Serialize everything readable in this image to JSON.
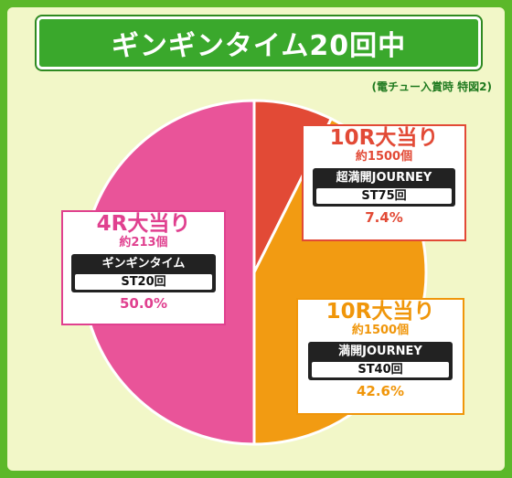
{
  "title": "ギンギンタイム20回中",
  "note": "(電チュー入賞時 特図2)",
  "chart_data": {
    "type": "pie",
    "title": "ギンギンタイム20回中",
    "slices": [
      {
        "label": "10R大当り",
        "sub": "約1500個",
        "mode": "超満開JOURNEY",
        "st": "ST75回",
        "value": 7.4,
        "pct_label": "7.4%",
        "color": "#e24a36"
      },
      {
        "label": "10R大当り",
        "sub": "約1500個",
        "mode": "満開JOURNEY",
        "st": "ST40回",
        "value": 42.6,
        "pct_label": "42.6%",
        "color": "#f29b12"
      },
      {
        "label": "4R大当り",
        "sub": "約213個",
        "mode": "ギンギンタイム",
        "st": "ST20回",
        "value": 50.0,
        "pct_label": "50.0%",
        "color": "#e95499"
      }
    ]
  }
}
